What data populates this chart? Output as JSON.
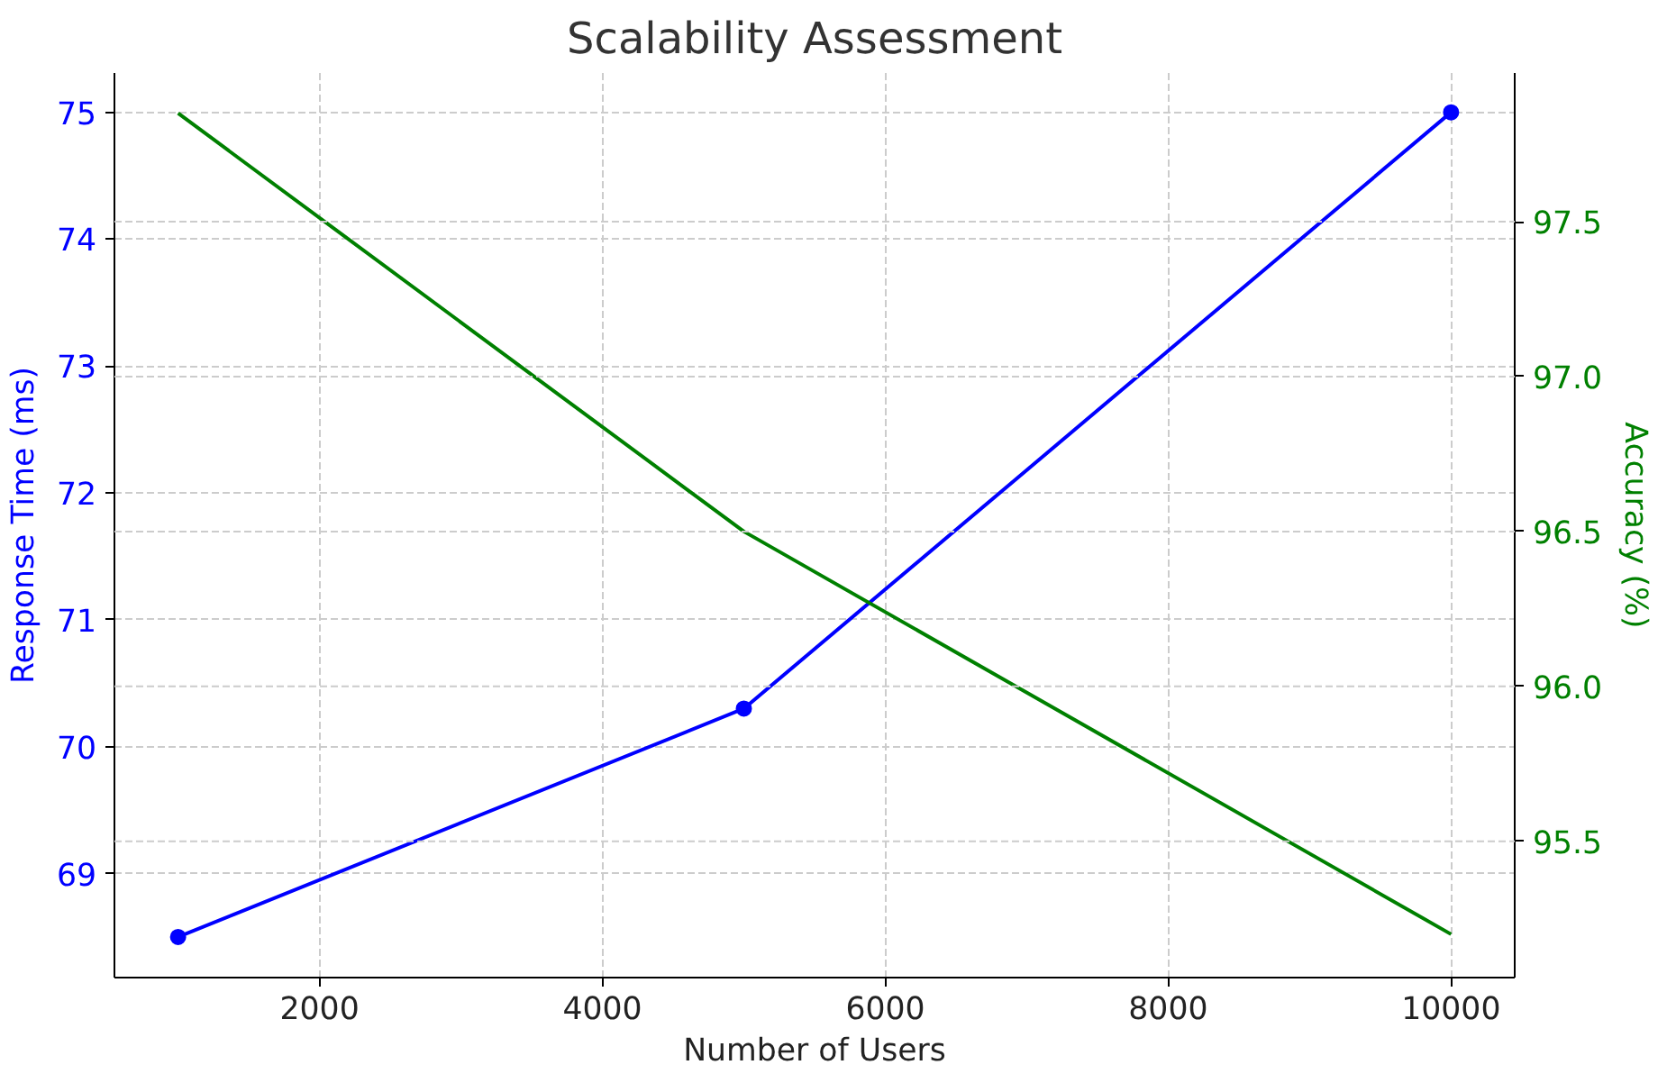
{
  "chart_data": {
    "type": "line",
    "title": "Scalability Assessment",
    "xlabel": "Number of Users",
    "ylabel": "Response Time (ms)",
    "y2label": "Accuracy (%)",
    "x": [
      1000,
      5000,
      10000
    ],
    "series": [
      {
        "color": "#0000ff",
        "values": [
          68.5,
          70.3,
          75
        ],
        "marker": "circle"
      },
      {
        "color": "#008000",
        "values": [
          97.85,
          96.5,
          95.2
        ],
        "axis": "y2",
        "marker": "none"
      }
    ],
    "xlim": [
      550,
      10450
    ],
    "xticks": [
      2000,
      4000,
      6000,
      8000,
      10000
    ],
    "ylim": [
      68.18,
      75.31
    ],
    "yticks": [
      69,
      70,
      71,
      72,
      73,
      74,
      75
    ],
    "y2lim": [
      95.06,
      97.98
    ],
    "y2ticks": [
      {
        "value": 95.5,
        "label": "95.5"
      },
      {
        "value": 96,
        "label": "96.0"
      },
      {
        "value": 96.5,
        "label": "96.5"
      },
      {
        "value": 97,
        "label": "97.0"
      },
      {
        "value": 97.5,
        "label": "97.5"
      }
    ],
    "grid": true,
    "line_style": "solid"
  }
}
